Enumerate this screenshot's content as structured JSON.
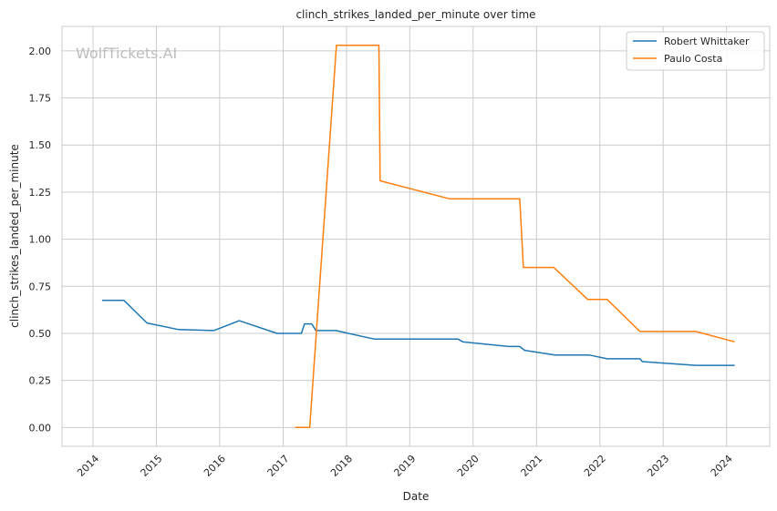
{
  "chart_data": {
    "type": "line",
    "title": "clinch_strikes_landed_per_minute over time",
    "xlabel": "Date",
    "ylabel": "clinch_strikes_landed_per_minute",
    "watermark": "WolfTickets.AI",
    "grid": true,
    "legend_position": "top-right",
    "xlim": [
      "2013-07-06",
      "2024-09-06"
    ],
    "ylim": [
      -0.1,
      2.13
    ],
    "x_ticks": [
      "2014",
      "2015",
      "2016",
      "2017",
      "2018",
      "2019",
      "2020",
      "2021",
      "2022",
      "2023",
      "2024"
    ],
    "y_ticks": [
      "0.00",
      "0.25",
      "0.50",
      "0.75",
      "1.00",
      "1.25",
      "1.50",
      "1.75",
      "2.00"
    ],
    "series": [
      {
        "name": "Robert Whittaker",
        "color": "#1f77b4",
        "points": [
          [
            "2014-02-22",
            0.675
          ],
          [
            "2014-06-28",
            0.675
          ],
          [
            "2014-11-08",
            0.555
          ],
          [
            "2015-05-09",
            0.52
          ],
          [
            "2015-11-28",
            0.515
          ],
          [
            "2016-04-23",
            0.567
          ],
          [
            "2016-11-27",
            0.5
          ],
          [
            "2017-04-16",
            0.5
          ],
          [
            "2017-05-04",
            0.55
          ],
          [
            "2017-06-15",
            0.55
          ],
          [
            "2017-07-08",
            0.515
          ],
          [
            "2017-11-01",
            0.515
          ],
          [
            "2018-06-09",
            0.47
          ],
          [
            "2019-10-06",
            0.47
          ],
          [
            "2019-11-03",
            0.455
          ],
          [
            "2020-07-25",
            0.43
          ],
          [
            "2020-09-26",
            0.43
          ],
          [
            "2020-10-24",
            0.41
          ],
          [
            "2021-04-17",
            0.385
          ],
          [
            "2021-10-30",
            0.385
          ],
          [
            "2022-02-12",
            0.365
          ],
          [
            "2022-08-20",
            0.365
          ],
          [
            "2022-09-03",
            0.35
          ],
          [
            "2023-07-08",
            0.33
          ],
          [
            "2024-02-17",
            0.33
          ]
        ]
      },
      {
        "name": "Paulo Costa",
        "color": "#ff7f0e",
        "points": [
          [
            "2017-03-11",
            0.0
          ],
          [
            "2017-06-03",
            0.0
          ],
          [
            "2017-11-04",
            2.03
          ],
          [
            "2018-07-07",
            2.03
          ],
          [
            "2018-07-14",
            1.31
          ],
          [
            "2019-08-17",
            1.215
          ],
          [
            "2020-09-26",
            1.215
          ],
          [
            "2020-10-17",
            0.85
          ],
          [
            "2021-04-10",
            0.85
          ],
          [
            "2021-10-23",
            0.68
          ],
          [
            "2022-02-12",
            0.68
          ],
          [
            "2022-08-20",
            0.51
          ],
          [
            "2023-07-08",
            0.51
          ],
          [
            "2024-02-17",
            0.455
          ]
        ]
      }
    ]
  }
}
